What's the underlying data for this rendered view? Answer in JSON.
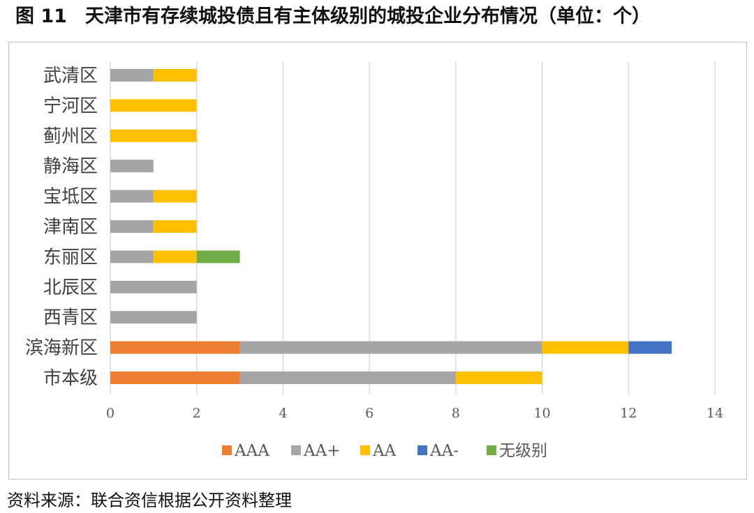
{
  "figure": {
    "label": "图 11",
    "title": "天津市有存续城投债且有主体级别的城投企业分布情况（单位：个）"
  },
  "source": "资料来源：联合资信根据公开资料整理",
  "colors": {
    "AAA": "#ed7d31",
    "AA+": "#a5a5a5",
    "AA": "#ffc000",
    "AA-": "#4472c4",
    "无级别": "#70ad47",
    "grid": "#d9d9d9"
  },
  "chart_data": {
    "type": "bar",
    "orientation": "horizontal",
    "stacked": true,
    "categories": [
      "市本级",
      "滨海新区",
      "西青区",
      "北辰区",
      "东丽区",
      "津南区",
      "宝坻区",
      "静海区",
      "蓟州区",
      "宁河区",
      "武清区"
    ],
    "series": [
      {
        "name": "AAA",
        "values": [
          3,
          3,
          0,
          0,
          0,
          0,
          0,
          0,
          0,
          0,
          0
        ]
      },
      {
        "name": "AA+",
        "values": [
          5,
          7,
          2,
          2,
          1,
          1,
          1,
          1,
          0,
          0,
          1
        ]
      },
      {
        "name": "AA",
        "values": [
          2,
          2,
          0,
          0,
          1,
          1,
          1,
          0,
          2,
          2,
          1
        ]
      },
      {
        "name": "AA-",
        "values": [
          0,
          1,
          0,
          0,
          0,
          0,
          0,
          0,
          0,
          0,
          0
        ]
      },
      {
        "name": "无级别",
        "values": [
          0,
          0,
          0,
          0,
          1,
          0,
          0,
          0,
          0,
          0,
          0
        ]
      }
    ],
    "xlim": [
      0,
      14
    ],
    "xticks": [
      0,
      2,
      4,
      6,
      8,
      10,
      12,
      14
    ],
    "grid": "vertical",
    "legend": "bottom"
  }
}
